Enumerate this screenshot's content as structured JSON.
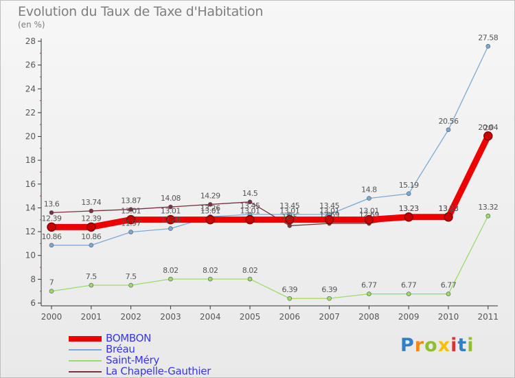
{
  "header": {
    "title": "Evolution du Taux de Taxe d'Habitation",
    "subtitle": "(en %)"
  },
  "logo": {
    "text": "Proxiti"
  },
  "colors": {
    "background_top": "#f7f7f7",
    "background_bottom": "#e9e9e9",
    "axis": "#333333",
    "grid": "#dddddd",
    "label": "#555555"
  },
  "chart_data": {
    "type": "line",
    "title": "Evolution du Taux de Taxe d'Habitation",
    "ylabel": "(en %)",
    "xlabel": "",
    "x": [
      "2000",
      "2001",
      "2002",
      "2003",
      "2004",
      "2005",
      "2006",
      "2007",
      "2008",
      "2009",
      "2010",
      "2011"
    ],
    "ylim": [
      6,
      28
    ],
    "yticks": [
      6,
      8,
      10,
      12,
      14,
      16,
      18,
      20,
      22,
      24,
      26,
      28
    ],
    "grid": false,
    "legend_position": "bottom-left",
    "series": [
      {
        "name": "BOMBON",
        "color": "#ee0000",
        "legend_color": "#3333ff",
        "values": [
          12.39,
          12.39,
          13.01,
          13.01,
          13.01,
          13.01,
          13.01,
          13.01,
          13.01,
          13.23,
          13.23,
          20.04
        ],
        "labels": [
          "12.39",
          "12.39",
          "13.01",
          "13.01",
          "13.01",
          "13.01",
          "13.01",
          "13.01",
          "13.01",
          "13.23",
          "13.23",
          "20.04"
        ]
      },
      {
        "name": "Bréau",
        "color": "#7aa9d6",
        "legend_color": "#3333ff",
        "values": [
          10.86,
          10.86,
          11.97,
          12.26,
          13.26,
          13.45,
          13.45,
          13.45,
          14.8,
          15.19,
          20.56,
          27.58
        ],
        "labels": [
          "10.86",
          "10.86",
          "11.97",
          "12.26",
          "13.26",
          "13.45",
          "13.45",
          "13.45",
          "14.8",
          "15.19",
          "20.56",
          "27.58"
        ]
      },
      {
        "name": "Saint-Méry",
        "color": "#99dd66",
        "legend_color": "#3333ff",
        "values": [
          7,
          7.5,
          7.5,
          8.02,
          8.02,
          8.02,
          6.39,
          6.39,
          6.77,
          6.77,
          6.77,
          13.32
        ],
        "labels": [
          "7",
          "7.5",
          "7.5",
          "8.02",
          "8.02",
          "8.02",
          "6.39",
          "6.39",
          "6.77",
          "6.77",
          "6.77",
          "13.32"
        ]
      },
      {
        "name": "La Chapelle-Gauthier",
        "color": "#7a3040",
        "legend_color": "#3333ff",
        "values": [
          13.6,
          13.74,
          13.87,
          14.08,
          14.29,
          14.5,
          12.5,
          12.69,
          12.69,
          13.23,
          13.23,
          20
        ],
        "labels": [
          "13.6",
          "13.74",
          "13.87",
          "14.08",
          "14.29",
          "14.5",
          "12.5",
          "12.69",
          "12.69",
          "13.23",
          "13.23",
          "20"
        ]
      }
    ]
  }
}
